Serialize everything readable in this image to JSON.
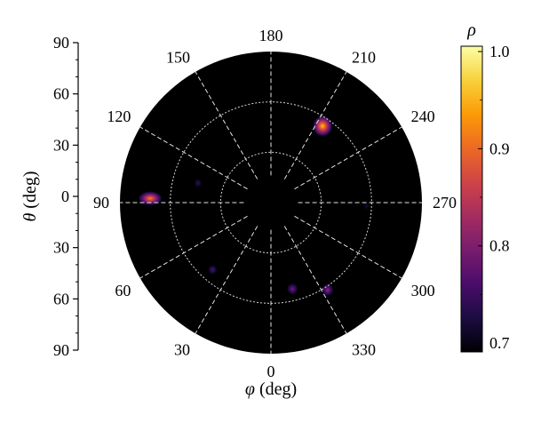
{
  "chart_data": {
    "type": "heatmap",
    "projection": "polar",
    "title": "",
    "xlabel": "φ (deg)",
    "xlabel_symbol": "φ",
    "xlabel_unit": " (deg)",
    "ylabel": "θ (deg)",
    "ylabel_symbol": "θ",
    "ylabel_unit": " (deg)",
    "colorbar_label": "ρ",
    "theta_ticks": [
      "90",
      "60",
      "30",
      "0",
      "30",
      "60",
      "90"
    ],
    "phi_ticks": [
      {
        "value": 0,
        "label": "0"
      },
      {
        "value": 30,
        "label": "30"
      },
      {
        "value": 60,
        "label": "60"
      },
      {
        "value": 90,
        "label": "90"
      },
      {
        "value": 120,
        "label": "120"
      },
      {
        "value": 150,
        "label": "150"
      },
      {
        "value": 180,
        "label": "180"
      },
      {
        "value": 210,
        "label": "210"
      },
      {
        "value": 240,
        "label": "240"
      },
      {
        "value": 270,
        "label": "270"
      },
      {
        "value": 300,
        "label": "300"
      },
      {
        "value": 330,
        "label": "330"
      }
    ],
    "radial_rings_theta_deg": [
      30,
      60
    ],
    "theta_max_deg": 90,
    "colorbar": {
      "range": [
        0.7,
        1.0
      ],
      "ticks": [
        "1.0",
        "0.9",
        "0.8",
        "0.7"
      ],
      "tick_values": [
        1.0,
        0.9,
        0.8,
        0.7
      ],
      "colormap": "inferno",
      "colors": [
        "#000004",
        "#1b0c41",
        "#4a0c6b",
        "#781c6d",
        "#a52c60",
        "#cf4446",
        "#ed6925",
        "#fb9b06",
        "#f7d13d",
        "#fcffa4"
      ]
    },
    "background_color": "#000000",
    "points": [
      {
        "phi": 214,
        "theta": 55,
        "rho": 0.96
      },
      {
        "phi": 92,
        "theta": 72,
        "rho": 0.92
      },
      {
        "phi": 327,
        "theta": 62,
        "rho": 0.82
      },
      {
        "phi": 346,
        "theta": 53,
        "rho": 0.8
      },
      {
        "phi": 41,
        "theta": 53,
        "rho": 0.77
      },
      {
        "phi": 105,
        "theta": 45,
        "rho": 0.75
      },
      {
        "phi": 272,
        "theta": 57,
        "rho": 0.73
      }
    ]
  }
}
